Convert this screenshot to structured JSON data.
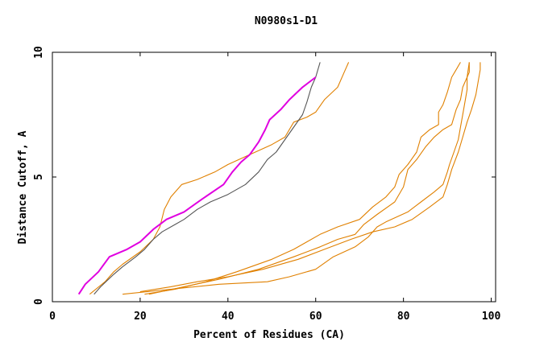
{
  "chart_data": {
    "type": "line",
    "title": "N0980s1-D1",
    "xlabel": "Percent of Residues (CA)",
    "ylabel": "Distance Cutoff, A",
    "xlim": [
      0,
      101
    ],
    "ylim": [
      0,
      10
    ],
    "x_ticks": [
      0,
      20,
      40,
      60,
      80,
      100
    ],
    "y_ticks": [
      0,
      5,
      10
    ],
    "grid": false,
    "series": [
      {
        "name": "orange-1",
        "color": "#e08000",
        "points": [
          [
            8.5,
            0.3
          ],
          [
            12,
            0.8
          ],
          [
            14,
            1.2
          ],
          [
            16,
            1.5
          ],
          [
            20,
            2.0
          ],
          [
            23,
            2.5
          ],
          [
            24.5,
            3.0
          ],
          [
            25.5,
            3.7
          ],
          [
            27,
            4.2
          ],
          [
            29.5,
            4.7
          ],
          [
            33,
            4.9
          ],
          [
            37,
            5.2
          ],
          [
            40,
            5.5
          ],
          [
            45,
            5.9
          ],
          [
            50,
            6.3
          ],
          [
            53,
            6.6
          ],
          [
            55,
            7.2
          ],
          [
            58,
            7.4
          ],
          [
            60,
            7.6
          ],
          [
            62,
            8.1
          ],
          [
            65,
            8.6
          ],
          [
            66.5,
            9.2
          ],
          [
            67.5,
            9.6
          ]
        ]
      },
      {
        "name": "orange-2",
        "color": "#e08000",
        "points": [
          [
            16,
            0.3
          ],
          [
            27,
            0.5
          ],
          [
            38,
            0.7
          ],
          [
            49,
            0.8
          ],
          [
            54,
            1.0
          ],
          [
            60,
            1.3
          ],
          [
            64,
            1.8
          ],
          [
            69,
            2.2
          ],
          [
            72,
            2.6
          ],
          [
            74,
            3.0
          ],
          [
            76,
            3.2
          ],
          [
            81,
            3.6
          ],
          [
            84,
            4.0
          ],
          [
            87,
            4.4
          ],
          [
            89,
            4.7
          ],
          [
            90,
            5.2
          ],
          [
            90.5,
            5.5
          ],
          [
            91.5,
            6.0
          ],
          [
            92.5,
            6.5
          ],
          [
            93,
            7.0
          ],
          [
            93.5,
            7.5
          ],
          [
            94,
            8.0
          ],
          [
            94.5,
            8.5
          ],
          [
            94.5,
            9.0
          ],
          [
            95,
            9.6
          ]
        ]
      },
      {
        "name": "orange-3",
        "color": "#e08000",
        "points": [
          [
            21,
            0.3
          ],
          [
            28,
            0.5
          ],
          [
            35,
            0.8
          ],
          [
            42,
            1.2
          ],
          [
            50,
            1.7
          ],
          [
            55,
            2.1
          ],
          [
            58,
            2.4
          ],
          [
            61,
            2.7
          ],
          [
            65,
            3.0
          ],
          [
            70,
            3.3
          ],
          [
            73,
            3.8
          ],
          [
            76,
            4.2
          ],
          [
            78,
            4.6
          ],
          [
            79,
            5.1
          ],
          [
            81,
            5.5
          ],
          [
            83,
            6.0
          ],
          [
            84,
            6.6
          ],
          [
            86,
            6.9
          ],
          [
            88,
            7.1
          ],
          [
            88,
            7.6
          ],
          [
            89,
            7.9
          ],
          [
            90,
            8.4
          ],
          [
            91,
            9.0
          ],
          [
            92,
            9.3
          ],
          [
            93,
            9.6
          ]
        ]
      },
      {
        "name": "orange-4",
        "color": "#e08000",
        "points": [
          [
            22,
            0.3
          ],
          [
            30,
            0.6
          ],
          [
            38,
            0.9
          ],
          [
            47,
            1.3
          ],
          [
            55,
            1.8
          ],
          [
            61,
            2.2
          ],
          [
            65,
            2.5
          ],
          [
            69,
            2.7
          ],
          [
            71,
            3.1
          ],
          [
            74,
            3.5
          ],
          [
            78,
            4.0
          ],
          [
            80,
            4.6
          ],
          [
            81,
            5.3
          ],
          [
            83,
            5.7
          ],
          [
            85,
            6.2
          ],
          [
            87,
            6.6
          ],
          [
            89,
            6.9
          ],
          [
            91,
            7.1
          ],
          [
            92,
            7.7
          ],
          [
            93,
            8.1
          ],
          [
            93.5,
            8.6
          ],
          [
            95,
            9.2
          ],
          [
            95,
            9.6
          ]
        ]
      },
      {
        "name": "orange-5",
        "color": "#e08000",
        "points": [
          [
            20,
            0.4
          ],
          [
            27,
            0.6
          ],
          [
            33,
            0.8
          ],
          [
            40,
            1.0
          ],
          [
            48,
            1.3
          ],
          [
            56,
            1.7
          ],
          [
            62,
            2.1
          ],
          [
            68,
            2.5
          ],
          [
            73,
            2.8
          ],
          [
            78,
            3.0
          ],
          [
            82,
            3.3
          ],
          [
            86,
            3.8
          ],
          [
            89,
            4.2
          ],
          [
            90,
            4.7
          ],
          [
            91,
            5.3
          ],
          [
            92.5,
            6.0
          ],
          [
            93.5,
            6.6
          ],
          [
            94.5,
            7.2
          ],
          [
            95.5,
            7.7
          ],
          [
            96.5,
            8.3
          ],
          [
            97,
            8.8
          ],
          [
            97.5,
            9.3
          ],
          [
            97.5,
            9.6
          ]
        ]
      },
      {
        "name": "gray",
        "color": "#555555",
        "points": [
          [
            9.5,
            0.3
          ],
          [
            11,
            0.6
          ],
          [
            14,
            1.1
          ],
          [
            16,
            1.4
          ],
          [
            19,
            1.8
          ],
          [
            21,
            2.1
          ],
          [
            23,
            2.5
          ],
          [
            25,
            2.8
          ],
          [
            28,
            3.1
          ],
          [
            30,
            3.3
          ],
          [
            33,
            3.7
          ],
          [
            36,
            4.0
          ],
          [
            40,
            4.3
          ],
          [
            44,
            4.7
          ],
          [
            47,
            5.2
          ],
          [
            49,
            5.7
          ],
          [
            51,
            6.0
          ],
          [
            53,
            6.5
          ],
          [
            55,
            7.0
          ],
          [
            57,
            7.5
          ],
          [
            58,
            8.0
          ],
          [
            59,
            8.6
          ],
          [
            60,
            9.0
          ],
          [
            61,
            9.6
          ]
        ]
      },
      {
        "name": "magenta",
        "color": "#e000e0",
        "points": [
          [
            6,
            0.3
          ],
          [
            7.5,
            0.7
          ],
          [
            10.5,
            1.2
          ],
          [
            13,
            1.8
          ],
          [
            17,
            2.1
          ],
          [
            20,
            2.4
          ],
          [
            23,
            2.9
          ],
          [
            26,
            3.3
          ],
          [
            30,
            3.6
          ],
          [
            34,
            4.1
          ],
          [
            39,
            4.7
          ],
          [
            41,
            5.2
          ],
          [
            43,
            5.6
          ],
          [
            45,
            5.9
          ],
          [
            47,
            6.4
          ],
          [
            48.5,
            6.9
          ],
          [
            49.5,
            7.3
          ],
          [
            52,
            7.7
          ],
          [
            54,
            8.1
          ],
          [
            57,
            8.6
          ],
          [
            60,
            9.0
          ]
        ]
      }
    ]
  }
}
